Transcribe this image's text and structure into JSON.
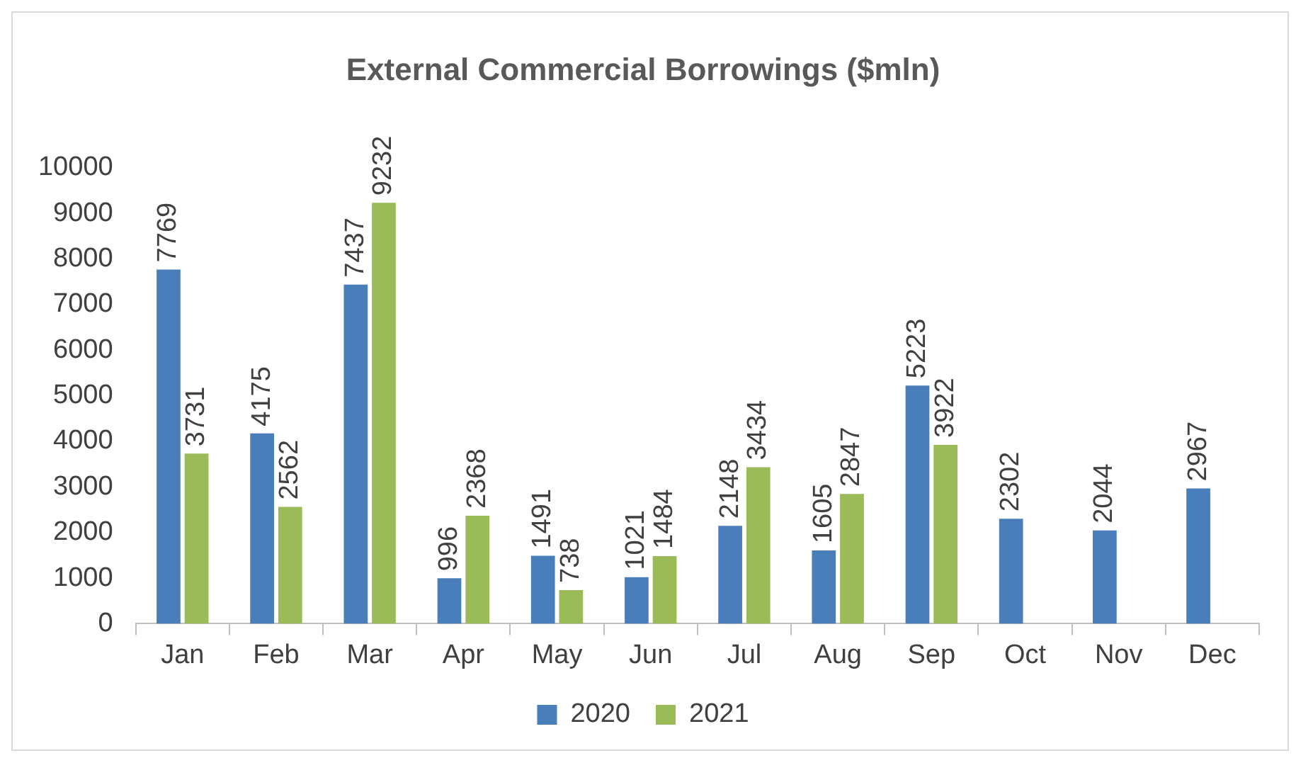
{
  "chart_data": {
    "type": "bar",
    "title": "External Commercial Borrowings ($mln)",
    "categories": [
      "Jan",
      "Feb",
      "Mar",
      "Apr",
      "May",
      "Jun",
      "Jul",
      "Aug",
      "Sep",
      "Oct",
      "Nov",
      "Dec"
    ],
    "series": [
      {
        "name": "2020",
        "color": "#4a7ebb",
        "values": [
          7769,
          4175,
          7437,
          996,
          1491,
          1021,
          2148,
          1605,
          5223,
          2302,
          2044,
          2967
        ]
      },
      {
        "name": "2021",
        "color": "#9bbb59",
        "values": [
          3731,
          2562,
          9232,
          2368,
          738,
          1484,
          3434,
          2847,
          3922,
          null,
          null,
          null
        ]
      }
    ],
    "ylim": [
      0,
      10000
    ],
    "yticks": [
      0,
      1000,
      2000,
      3000,
      4000,
      5000,
      6000,
      7000,
      8000,
      9000,
      10000
    ],
    "grid": false,
    "legend": "bottom",
    "data_labels": true
  }
}
